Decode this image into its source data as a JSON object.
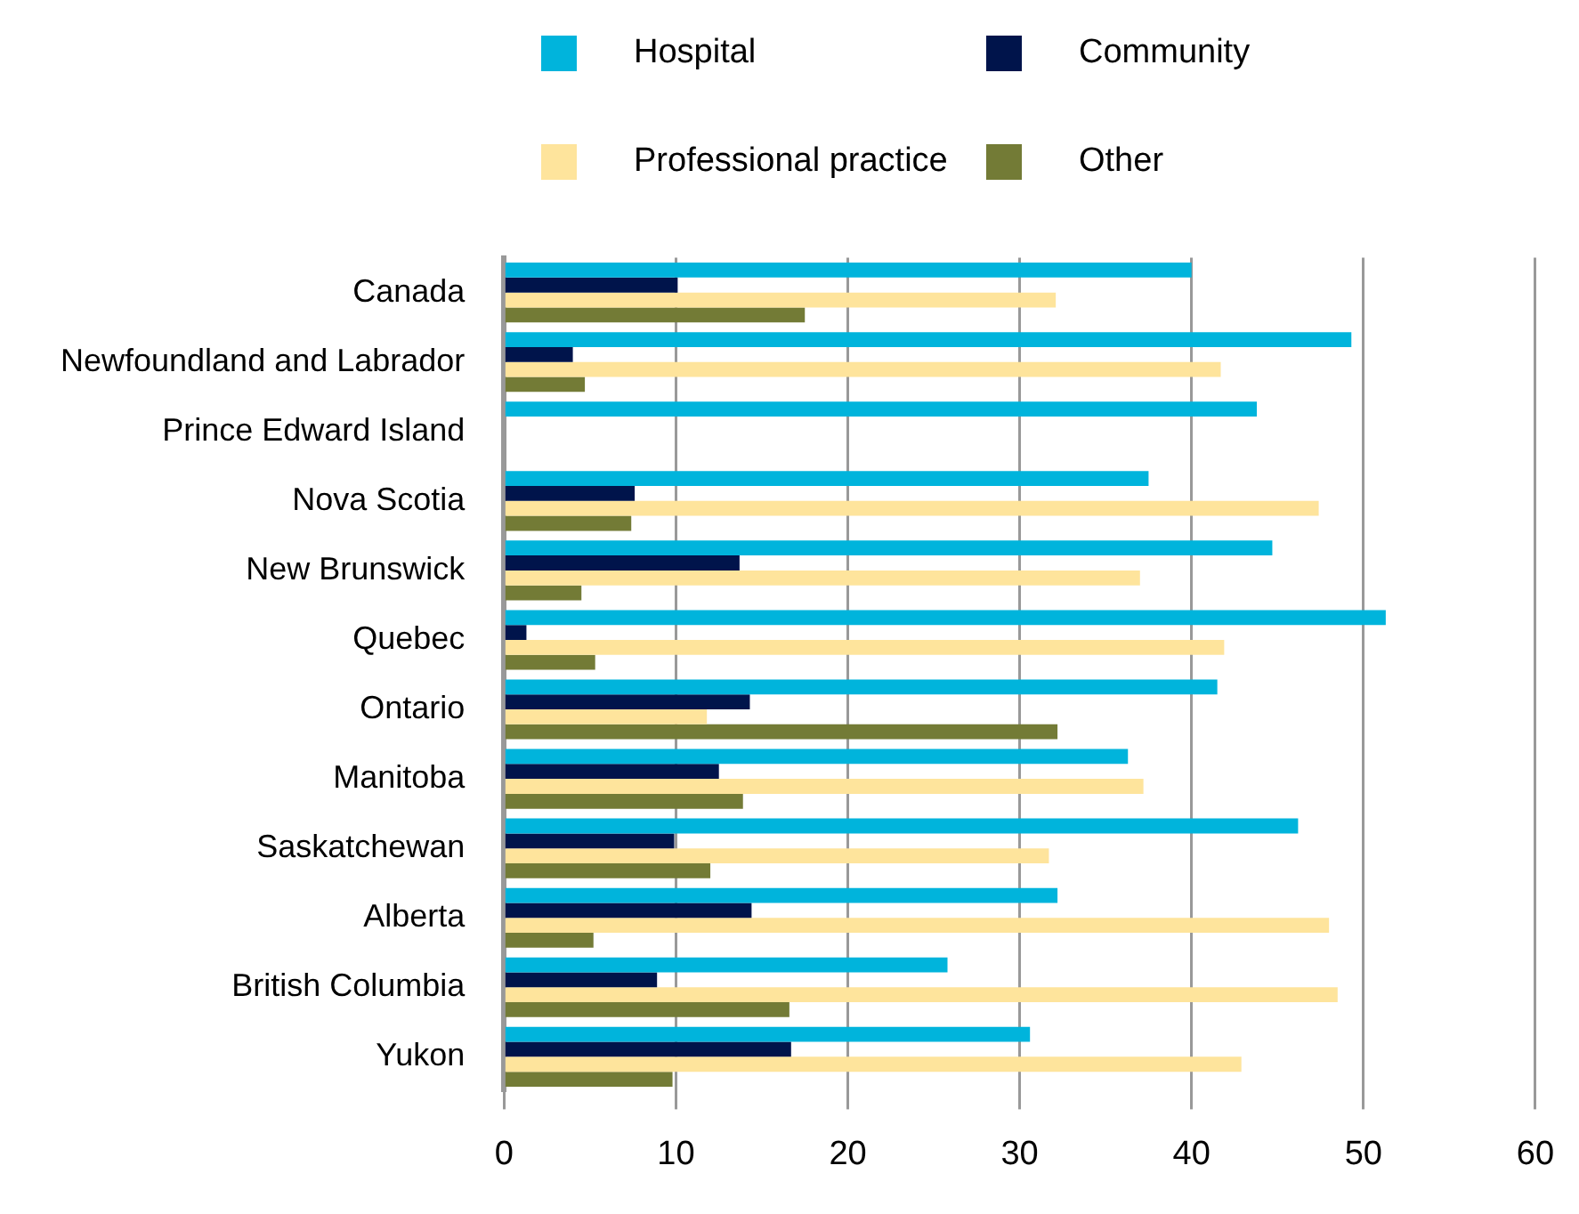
{
  "chart_data": {
    "type": "bar",
    "orientation": "horizontal",
    "categories": [
      "Canada",
      "Newfoundland and Labrador",
      "Prince Edward Island",
      "Nova Scotia",
      "New Brunswick",
      "Quebec",
      "Ontario",
      "Manitoba",
      "Saskatchewan",
      "Alberta",
      "British Columbia",
      "Yukon"
    ],
    "series": [
      {
        "name": "Hospital",
        "color": "#00b4dc",
        "values": [
          40.0,
          49.3,
          43.8,
          37.5,
          44.7,
          51.3,
          41.5,
          36.3,
          46.2,
          32.2,
          25.8,
          30.6
        ]
      },
      {
        "name": "Community",
        "color": "#00144b",
        "values": [
          10.1,
          4.0,
          null,
          7.6,
          13.7,
          1.3,
          14.3,
          12.5,
          9.9,
          14.4,
          8.9,
          16.7
        ]
      },
      {
        "name": "Professional practice",
        "color": "#fee49c",
        "values": [
          32.1,
          41.7,
          null,
          47.4,
          37.0,
          41.9,
          11.8,
          37.2,
          31.7,
          48.0,
          48.5,
          42.9
        ]
      },
      {
        "name": "Other",
        "color": "#737b36",
        "values": [
          17.5,
          4.7,
          null,
          7.4,
          4.5,
          5.3,
          32.2,
          13.9,
          12.0,
          5.2,
          16.6,
          9.8
        ]
      }
    ],
    "xlim": [
      0,
      60
    ],
    "xticks": [
      0,
      10,
      20,
      30,
      40,
      50,
      60
    ],
    "grid": "x",
    "legend": "top"
  }
}
